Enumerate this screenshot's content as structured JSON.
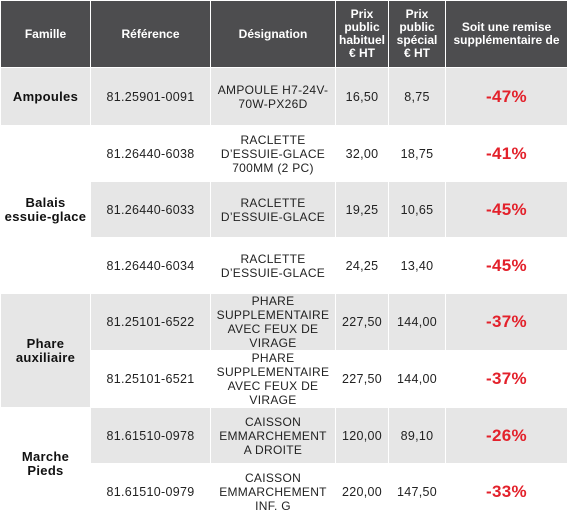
{
  "header": [
    "Famille",
    "Référence",
    "Désignation",
    "Prix public habituel € HT",
    "Prix public spécial € HT",
    "Soit une remise supplémentaire de"
  ],
  "groups": [
    {
      "famille": "Ampoules",
      "rows": [
        [
          "81.25901-0091",
          "AMPOULE H7-24V-70W-PX26D",
          "16,50",
          "8,75",
          "-47%"
        ]
      ]
    },
    {
      "famille": "Balais essuie-glace",
      "rows": [
        [
          "81.26440-6038",
          "RACLETTE D’ESSUIE-GLACE 700MM (2 PC)",
          "32,00",
          "18,75",
          "-41%"
        ],
        [
          "81.26440-6033",
          "RACLETTE D’ESSUIE-GLACE",
          "19,25",
          "10,65",
          "-45%"
        ],
        [
          "81.26440-6034",
          "RACLETTE D’ESSUIE-GLACE",
          "24,25",
          "13,40",
          "-45%"
        ]
      ]
    },
    {
      "famille": "Phare auxiliaire",
      "rows": [
        [
          "81.25101-6522",
          "PHARE SUPPLEMENTAIRE AVEC FEUX DE VIRAGE",
          "227,50",
          "144,00",
          "-37%"
        ],
        [
          "81.25101-6521",
          "PHARE SUPPLEMENTAIRE AVEC FEUX DE VIRAGE",
          "227,50",
          "144,00",
          "-37%"
        ]
      ]
    },
    {
      "famille": "Marche Pieds",
      "rows": [
        [
          "81.61510-0978",
          "CAISSON EMMARCHEMENT A DROITE",
          "120,00",
          "89,10",
          "-26%"
        ],
        [
          "81.61510-0979",
          "CAISSON EMMARCHEMENT INF. G",
          "220,00",
          "147,50",
          "-33%"
        ]
      ]
    }
  ]
}
